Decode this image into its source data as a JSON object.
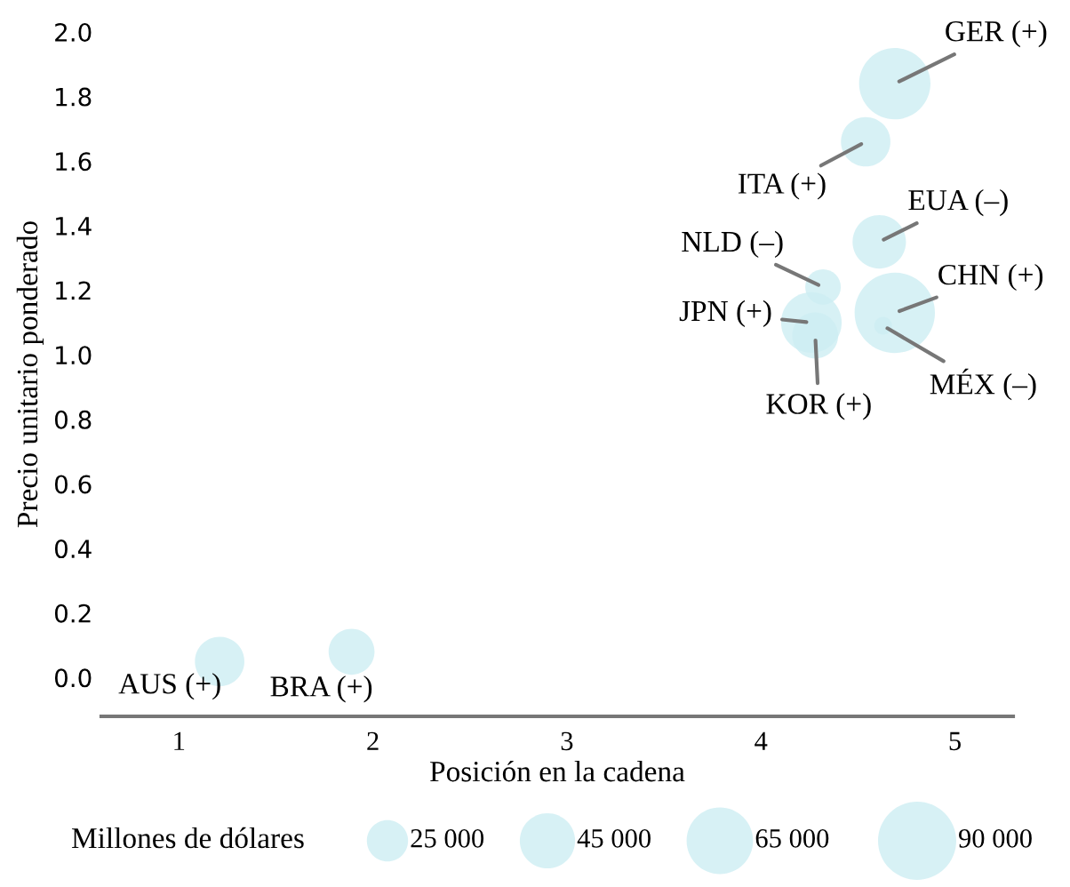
{
  "chart_data": {
    "type": "bubble",
    "xlabel": "Posición en la cadena",
    "ylabel": "Precio unitario ponderado",
    "legend_title": "Millones de dólares",
    "color": "#cdeef3",
    "x": [
      4.69,
      4.54,
      4.61,
      4.32,
      4.69,
      4.63,
      4.26,
      4.28,
      1.21,
      1.89
    ],
    "values": [
      1.84,
      1.66,
      1.35,
      1.21,
      1.13,
      1.09,
      1.1,
      1.06,
      0.05,
      0.08
    ],
    "sizes": [
      75000,
      36000,
      42000,
      18600,
      95000,
      4600,
      54000,
      31000,
      36000,
      31000
    ],
    "size_legend": [
      {
        "value": 25000,
        "label": "25 000"
      },
      {
        "value": 45000,
        "label": "45 000"
      },
      {
        "value": 65000,
        "label": "65 000"
      },
      {
        "value": 90000,
        "label": "90 000"
      }
    ],
    "annotations": [
      {
        "text": "GER (+)",
        "x": 4.69,
        "y": 1.84
      },
      {
        "text": "ITA (+)",
        "x": 4.54,
        "y": 1.66
      },
      {
        "text": "EUA (–)",
        "x": 4.61,
        "y": 1.35
      },
      {
        "text": "NLD (–)",
        "x": 4.32,
        "y": 1.21
      },
      {
        "text": "CHN (+)",
        "x": 4.69,
        "y": 1.13
      },
      {
        "text": "MÉX (–)",
        "x": 4.63,
        "y": 1.09
      },
      {
        "text": "JPN (+)",
        "x": 4.26,
        "y": 1.1
      },
      {
        "text": "KOR (+)",
        "x": 4.28,
        "y": 1.06
      },
      {
        "text": "AUS (+)",
        "x": 1.21,
        "y": 0.05
      },
      {
        "text": "BRA (+)",
        "x": 1.89,
        "y": 0.08
      }
    ],
    "xlim": [
      0.6,
      5.3
    ],
    "xticks": [
      1,
      2,
      3,
      4,
      5
    ],
    "ylim": [
      -0.12,
      2.0
    ],
    "yticks": [
      {
        "value": 0,
        "label": "0.0"
      },
      {
        "value": 0.2,
        "label": "0.2"
      },
      {
        "value": 0.4,
        "label": "0.4"
      },
      {
        "value": 0.6,
        "label": "0.6"
      },
      {
        "value": 0.8,
        "label": "0.8"
      },
      {
        "value": 1.0,
        "label": "1.0"
      },
      {
        "value": 1.2,
        "label": "1.2"
      },
      {
        "value": 1.4,
        "label": "1.4"
      },
      {
        "value": 1.6,
        "label": "1.6"
      },
      {
        "value": 1.8,
        "label": "1.8"
      },
      {
        "value": 2.0,
        "label": "2.0"
      }
    ],
    "grid": false
  }
}
